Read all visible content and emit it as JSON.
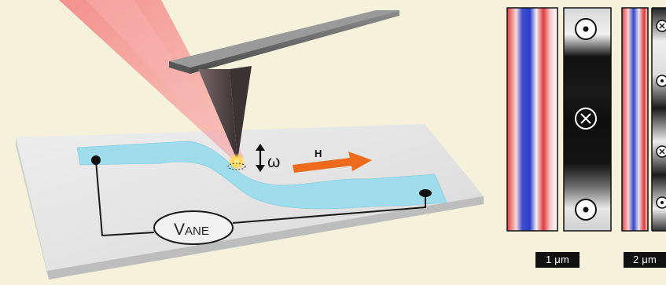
{
  "schematic": {
    "probe_motion_symbol": "ω",
    "field_symbol": "H",
    "voltmeter_prefix": "V",
    "voltmeter_subscript": "ANE",
    "field_arrow_color": "#ee6a1c",
    "wire_color": "#9fdcec",
    "laser_color": "#f07a7a"
  },
  "panels": [
    {
      "scale_label": "1 μm",
      "symbols": [
        "dot-in-circle",
        "cross-in-circle",
        "dot-in-circle"
      ]
    },
    {
      "scale_label": "2 μm",
      "symbols": [
        "cross-in-circle",
        "dot-in-circle",
        "cross-in-circle",
        "dot-in-circle"
      ]
    }
  ]
}
